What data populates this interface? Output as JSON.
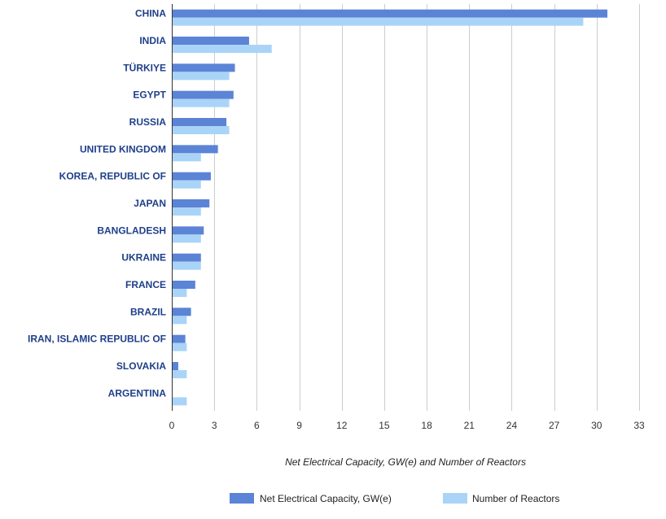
{
  "chart_data": {
    "type": "bar",
    "orientation": "horizontal",
    "categories": [
      "CHINA",
      "INDIA",
      "TÜRKIYE",
      "EGYPT",
      "RUSSIA",
      "UNITED KINGDOM",
      "KOREA, REPUBLIC OF",
      "JAPAN",
      "BANGLADESH",
      "UKRAINE",
      "FRANCE",
      "BRAZIL",
      "IRAN, ISLAMIC REPUBLIC OF",
      "SLOVAKIA",
      "ARGENTINA"
    ],
    "series": [
      {
        "name": "Net Electrical Capacity, GW(e)",
        "color": "#5b84d6",
        "values": [
          30.7,
          5.4,
          4.4,
          4.3,
          3.8,
          3.2,
          2.7,
          2.6,
          2.2,
          2.0,
          1.6,
          1.3,
          0.9,
          0.4,
          0.0
        ]
      },
      {
        "name": "Number of Reactors",
        "color": "#aad4f7",
        "values": [
          29,
          7,
          4,
          4,
          4,
          2,
          2,
          2,
          2,
          2,
          1,
          1,
          1,
          1,
          1
        ]
      }
    ],
    "xlabel": "Net Electrical Capacity, GW(e) and Number of Reactors",
    "ylabel": "",
    "xlim": [
      0,
      33
    ],
    "xticks": [
      0,
      3,
      6,
      9,
      12,
      15,
      18,
      21,
      24,
      27,
      30,
      33
    ],
    "grid": "vertical",
    "legend_position": "bottom"
  }
}
